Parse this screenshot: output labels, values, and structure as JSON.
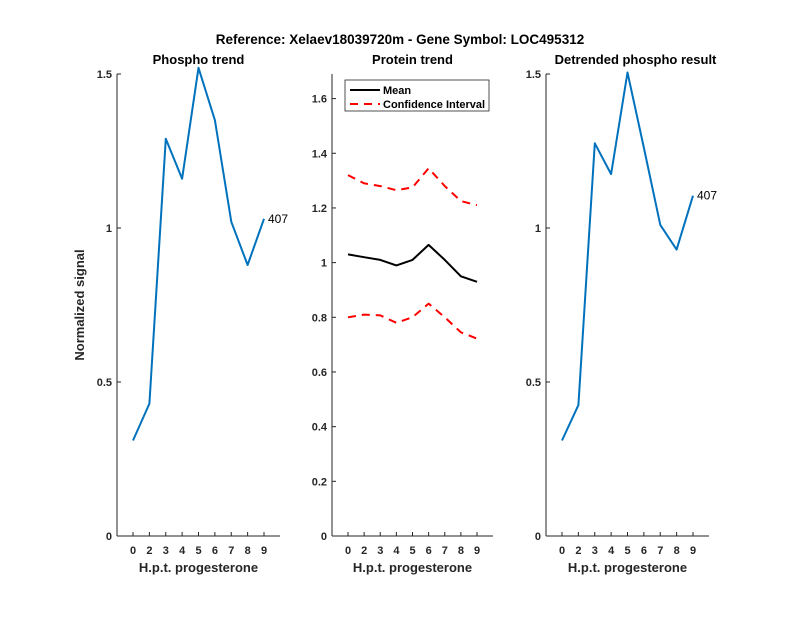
{
  "figure_title": "Reference:  Xelaev18039720m - Gene Symbol:  LOC495312",
  "colors": {
    "phospho": "#0072BD",
    "mean": "#000000",
    "ci": "#FF0000",
    "axis": "#262626"
  },
  "chart_data": [
    {
      "type": "line",
      "title": "Phospho trend",
      "xlabel": "H.p.t. progesterone",
      "ylabel": "Normalized signal",
      "categories": [
        "0",
        "2",
        "3",
        "4",
        "5",
        "6",
        "7",
        "8",
        "9"
      ],
      "ylim": [
        0,
        1.5
      ],
      "yticks": [
        0,
        0.5,
        1,
        1.5
      ],
      "ytick_labels": [
        "0",
        "0.5",
        "1",
        "1.5"
      ],
      "series": [
        {
          "values": [
            0.31,
            0.43,
            1.29,
            1.16,
            1.52,
            1.35,
            1.02,
            0.88,
            1.03
          ],
          "color": "#0072BD",
          "style": "solid"
        }
      ],
      "annotation": "407"
    },
    {
      "type": "line",
      "title": "Protein trend",
      "xlabel": "H.p.t. progesterone",
      "ylabel": "",
      "categories": [
        "0",
        "2",
        "3",
        "4",
        "5",
        "6",
        "7",
        "8",
        "9"
      ],
      "ylim": [
        0,
        1.69
      ],
      "yticks": [
        0,
        0.2,
        0.4,
        0.6,
        0.8,
        1,
        1.2,
        1.4,
        1.6
      ],
      "ytick_labels": [
        "0",
        "0.2",
        "0.4",
        "0.6",
        "0.8",
        "1",
        "1.2",
        "1.4",
        "1.6"
      ],
      "legend_position": "top-left",
      "series": [
        {
          "name": "Mean",
          "values": [
            1.03,
            1.02,
            1.01,
            0.99,
            1.01,
            1.065,
            1.01,
            0.95,
            0.93
          ],
          "color": "#000000",
          "style": "solid"
        },
        {
          "name": "Confidence Interval",
          "values": [
            1.32,
            1.29,
            1.28,
            1.265,
            1.275,
            1.345,
            1.28,
            1.225,
            1.21
          ],
          "color": "#FF0000",
          "style": "dashed"
        },
        {
          "values": [
            0.8,
            0.81,
            0.807,
            0.78,
            0.8,
            0.85,
            0.8,
            0.745,
            0.722
          ],
          "color": "#FF0000",
          "style": "dashed"
        }
      ]
    },
    {
      "type": "line",
      "title": "Detrended phospho result",
      "xlabel": "H.p.t. progesterone",
      "ylabel": "",
      "categories": [
        "0",
        "2",
        "3",
        "4",
        "5",
        "6",
        "7",
        "8",
        "9"
      ],
      "ylim": [
        0,
        1.5
      ],
      "yticks": [
        0,
        0.5,
        1,
        1.5
      ],
      "ytick_labels": [
        "0",
        "0.5",
        "1",
        "1.5"
      ],
      "series": [
        {
          "values": [
            0.31,
            0.425,
            1.275,
            1.175,
            1.505,
            1.26,
            1.01,
            0.93,
            1.105
          ],
          "color": "#0072BD",
          "style": "solid"
        }
      ],
      "annotation": "407"
    }
  ]
}
